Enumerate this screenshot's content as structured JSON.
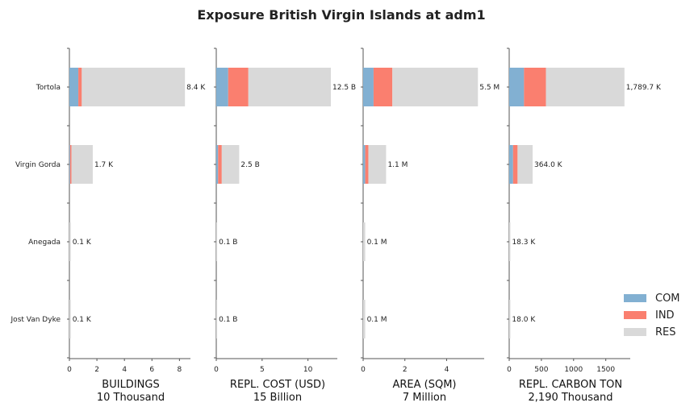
{
  "chart_data": {
    "type": "bar",
    "title": "Exposure British Virgin Islands at adm1",
    "categories": [
      "Tortola",
      "Virgin Gorda",
      "Anegada",
      "Jost Van Dyke"
    ],
    "legend": {
      "placement": "bottom-right",
      "entries": [
        {
          "name": "COM",
          "color": "#82b0d2"
        },
        {
          "name": "IND",
          "color": "#fa7f6f"
        },
        {
          "name": "RES",
          "color": "#d9d9d9"
        }
      ]
    },
    "panels": [
      {
        "xlabel": "BUILDINGS",
        "unit_label": "10 Thousand",
        "xlim": [
          0,
          8.8
        ],
        "ticks": [
          0,
          2,
          4,
          6,
          8
        ],
        "tick_labels": [
          "0",
          "2",
          "4",
          "6",
          "8"
        ],
        "series": [
          {
            "name": "COM",
            "values": [
              0.65,
              0.05,
              0.0,
              0.0
            ]
          },
          {
            "name": "IND",
            "values": [
              0.25,
              0.1,
              0.0,
              0.0
            ]
          },
          {
            "name": "RES",
            "values": [
              7.5,
              1.55,
              0.1,
              0.1
            ]
          }
        ],
        "total_labels": [
          "8.4 K",
          "1.7 K",
          "0.1 K",
          "0.1 K"
        ]
      },
      {
        "xlabel": "REPL. COST (USD)",
        "unit_label": "15 Billion",
        "xlim": [
          0,
          13.2
        ],
        "ticks": [
          0,
          5,
          10
        ],
        "tick_labels": [
          "0",
          "5",
          "10"
        ],
        "series": [
          {
            "name": "COM",
            "values": [
              1.3,
              0.2,
              0.0,
              0.0
            ]
          },
          {
            "name": "IND",
            "values": [
              2.2,
              0.4,
              0.0,
              0.0
            ]
          },
          {
            "name": "RES",
            "values": [
              9.0,
              1.9,
              0.1,
              0.1
            ]
          }
        ],
        "total_labels": [
          "12.5 B",
          "2.5 B",
          "0.1 B",
          "0.1 B"
        ]
      },
      {
        "xlabel": "AREA (SQM)",
        "unit_label": "7 Million",
        "xlim": [
          0,
          5.8
        ],
        "ticks": [
          0,
          2,
          4
        ],
        "tick_labels": [
          "0",
          "2",
          "4"
        ],
        "series": [
          {
            "name": "COM",
            "values": [
              0.5,
              0.1,
              0.0,
              0.0
            ]
          },
          {
            "name": "IND",
            "values": [
              0.9,
              0.15,
              0.0,
              0.0
            ]
          },
          {
            "name": "RES",
            "values": [
              4.1,
              0.85,
              0.1,
              0.1
            ]
          }
        ],
        "total_labels": [
          "5.5 M",
          "1.1 M",
          "0.1 M",
          "0.1 M"
        ]
      },
      {
        "xlabel": "REPL. CARBON TON",
        "unit_label": "2,190 Thousand",
        "xlim": [
          0,
          1880
        ],
        "ticks": [
          0,
          500,
          1000,
          1500
        ],
        "tick_labels": [
          "0",
          "500",
          "1000",
          "1500"
        ],
        "series": [
          {
            "name": "COM",
            "values": [
              230,
              60,
              0,
              0
            ]
          },
          {
            "name": "IND",
            "values": [
              340,
              70,
              0,
              0
            ]
          },
          {
            "name": "RES",
            "values": [
              1219.7,
              234,
              18.3,
              18.0
            ]
          }
        ],
        "total_labels": [
          "1,789.7 K",
          "364.0 K",
          "18.3 K",
          "18.0 K"
        ]
      }
    ]
  }
}
